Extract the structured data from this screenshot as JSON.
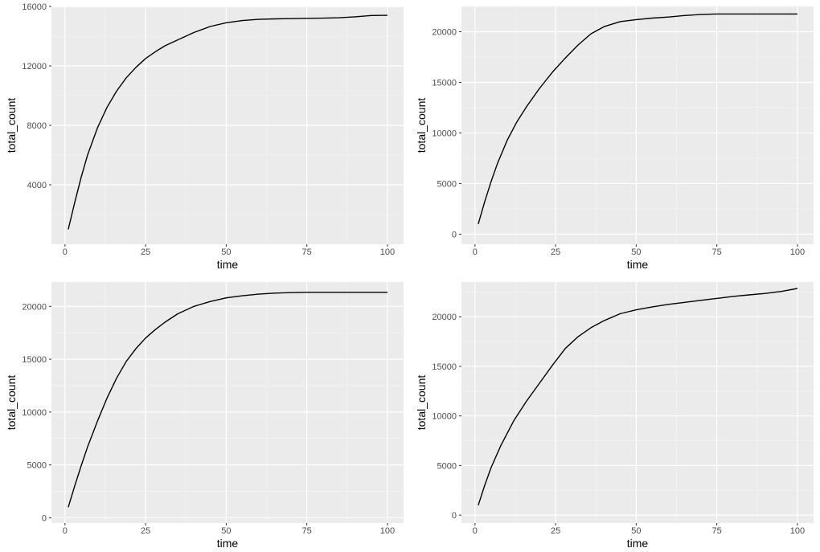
{
  "chart_data": [
    {
      "type": "line",
      "xlabel": "time",
      "ylabel": "total_count",
      "xlim": [
        -4.2,
        105
      ],
      "ylim": [
        0,
        16000
      ],
      "xticks": [
        0,
        25,
        50,
        75,
        100
      ],
      "yticks": [
        4000,
        8000,
        12000,
        16000
      ],
      "ytick_labels": [
        "4000",
        "8000",
        "12000",
        "16000"
      ],
      "xtick_labels": [
        "0",
        "25",
        "50",
        "75",
        "100"
      ],
      "grid": true,
      "series": [
        {
          "color": "#000000",
          "x": [
            1,
            3,
            5,
            7,
            10,
            13,
            16,
            19,
            22,
            25,
            28,
            31,
            35,
            40,
            45,
            50,
            55,
            60,
            65,
            70,
            75,
            80,
            85,
            90,
            95,
            100
          ],
          "y": [
            1000,
            2800,
            4500,
            6000,
            7800,
            9200,
            10300,
            11200,
            11900,
            12500,
            12950,
            13350,
            13750,
            14250,
            14650,
            14900,
            15050,
            15130,
            15160,
            15180,
            15200,
            15210,
            15240,
            15300,
            15390,
            15400
          ]
        }
      ]
    },
    {
      "type": "line",
      "xlabel": "time",
      "ylabel": "total_count",
      "xlim": [
        -4.2,
        105
      ],
      "ylim": [
        -1000,
        22500
      ],
      "xticks": [
        0,
        25,
        50,
        75,
        100
      ],
      "yticks": [
        0,
        5000,
        10000,
        15000,
        20000
      ],
      "ytick_labels": [
        "0",
        "5000",
        "10000",
        "15000",
        "20000"
      ],
      "xtick_labels": [
        "0",
        "25",
        "50",
        "75",
        "100"
      ],
      "grid": true,
      "series": [
        {
          "color": "#000000",
          "x": [
            1,
            3,
            5,
            7,
            10,
            13,
            16,
            20,
            24,
            28,
            32,
            36,
            40,
            45,
            50,
            55,
            60,
            65,
            70,
            75,
            80,
            85,
            90,
            95,
            100
          ],
          "y": [
            1000,
            3200,
            5200,
            7000,
            9300,
            11100,
            12600,
            14400,
            16000,
            17400,
            18700,
            19800,
            20500,
            21000,
            21200,
            21350,
            21450,
            21600,
            21700,
            21750,
            21750,
            21750,
            21750,
            21750,
            21750
          ]
        }
      ]
    },
    {
      "type": "line",
      "xlabel": "time",
      "ylabel": "total_count",
      "xlim": [
        -4.2,
        105
      ],
      "ylim": [
        -500,
        22300
      ],
      "xticks": [
        0,
        25,
        50,
        75,
        100
      ],
      "yticks": [
        0,
        5000,
        10000,
        15000,
        20000
      ],
      "ytick_labels": [
        "0",
        "5000",
        "10000",
        "15000",
        "20000"
      ],
      "xtick_labels": [
        "0",
        "25",
        "50",
        "75",
        "100"
      ],
      "grid": true,
      "series": [
        {
          "color": "#000000",
          "x": [
            1,
            3,
            5,
            7,
            10,
            13,
            16,
            19,
            22,
            25,
            28,
            31,
            35,
            40,
            45,
            50,
            55,
            60,
            65,
            70,
            75,
            80,
            85,
            90,
            95,
            100
          ],
          "y": [
            1000,
            3000,
            4900,
            6700,
            9100,
            11300,
            13200,
            14800,
            16000,
            17000,
            17800,
            18500,
            19300,
            20000,
            20450,
            20800,
            21000,
            21150,
            21250,
            21300,
            21330,
            21330,
            21330,
            21330,
            21330,
            21330
          ]
        }
      ]
    },
    {
      "type": "line",
      "xlabel": "time",
      "ylabel": "total_count",
      "xlim": [
        -4.2,
        105
      ],
      "ylim": [
        -800,
        23500
      ],
      "xticks": [
        0,
        25,
        50,
        75,
        100
      ],
      "yticks": [
        0,
        5000,
        10000,
        15000,
        20000
      ],
      "ytick_labels": [
        "0",
        "5000",
        "10000",
        "15000",
        "20000"
      ],
      "xtick_labels": [
        "0",
        "25",
        "50",
        "75",
        "100"
      ],
      "grid": true,
      "series": [
        {
          "color": "#000000",
          "x": [
            1,
            3,
            5,
            8,
            12,
            16,
            20,
            24,
            28,
            32,
            36,
            40,
            45,
            50,
            55,
            60,
            65,
            70,
            75,
            80,
            85,
            90,
            95,
            100
          ],
          "y": [
            1000,
            3000,
            4800,
            7000,
            9500,
            11500,
            13300,
            15100,
            16800,
            18000,
            18900,
            19600,
            20300,
            20700,
            21000,
            21250,
            21450,
            21650,
            21850,
            22050,
            22200,
            22350,
            22550,
            22850
          ]
        }
      ]
    }
  ]
}
